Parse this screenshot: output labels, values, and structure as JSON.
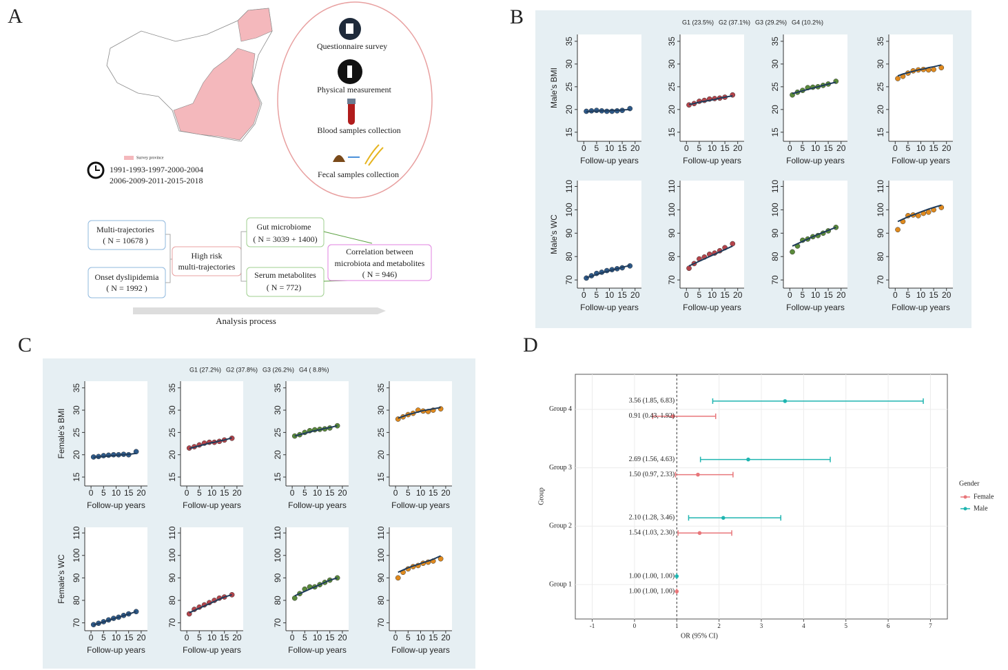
{
  "labels": [
    "A",
    "B",
    "C",
    "D"
  ],
  "diagram": {
    "map_legend": "Survey province",
    "years": [
      "1991-1993-1997-2000-2004",
      "2006-2009-2011-2015-2018"
    ],
    "steps": [
      "Questionnaire survey",
      "Physical measurement",
      "Blood samples collection",
      "Fecal samples collection"
    ],
    "flow": [
      [
        "Multi-trajectories",
        "( N = 10678 )"
      ],
      [
        "Onset dyslipidemia",
        "( N = 1992 )"
      ],
      [
        "High risk",
        "multi-trajectories"
      ],
      [
        "Gut microbiome",
        "( N = 3039 + 1400)"
      ],
      [
        "Serum metabolites",
        "( N = 772)"
      ],
      [
        "Correlation between",
        "microbiota and metabolites",
        "( N = 946)"
      ]
    ],
    "process": "Analysis process"
  },
  "groups_male": [
    "G1 (23.5%)",
    "G2 (37.1%)",
    "G3 (29.2%)",
    "G4 (10.2%)"
  ],
  "groups_female": [
    "G1 (27.2%)",
    "G2 (37.8%)",
    "G3 (26.2%)",
    "G4 ( 8.8%)"
  ],
  "chart_data": [
    {
      "type": "scatter",
      "ylabel": "Male's BMI",
      "xlabel": "Follow-up years",
      "x": [
        1,
        3,
        5,
        7,
        9,
        11,
        13,
        15,
        18
      ],
      "xlim": [
        -2.5,
        22.5
      ],
      "xticks": [
        0,
        5,
        10,
        15,
        20
      ],
      "ylim": [
        13,
        36.5
      ],
      "yticks": [
        15,
        20,
        25,
        30,
        35
      ],
      "series": [
        {
          "color": "#2e5a8a",
          "values": [
            19.6,
            19.7,
            19.8,
            19.7,
            19.6,
            19.6,
            19.7,
            19.8,
            20.2
          ]
        },
        {
          "color": "#1f3b5a",
          "line": true,
          "values": [
            19.5,
            19.6,
            19.6,
            19.7,
            19.7,
            19.8,
            19.8,
            19.9,
            20.0
          ]
        }
      ]
    },
    {
      "type": "scatter",
      "xlabel": "Follow-up years",
      "x": [
        1,
        3,
        5,
        7,
        9,
        11,
        13,
        15,
        18
      ],
      "xlim": [
        -2.5,
        22.5
      ],
      "xticks": [
        0,
        5,
        10,
        15,
        20
      ],
      "ylim": [
        13,
        36.5
      ],
      "yticks": [
        15,
        20,
        25,
        30,
        35
      ],
      "series": [
        {
          "color": "#b5444b",
          "values": [
            21.0,
            21.3,
            21.8,
            22.0,
            22.3,
            22.4,
            22.5,
            22.7,
            23.2
          ]
        },
        {
          "color": "#1f3b5a",
          "line": true,
          "values": [
            21.1,
            21.3,
            21.6,
            21.8,
            22.0,
            22.2,
            22.5,
            22.7,
            23.0
          ]
        }
      ]
    },
    {
      "type": "scatter",
      "xlabel": "Follow-up years",
      "x": [
        1,
        3,
        5,
        7,
        9,
        11,
        13,
        15,
        18
      ],
      "xlim": [
        -2.5,
        22.5
      ],
      "xticks": [
        0,
        5,
        10,
        15,
        20
      ],
      "ylim": [
        13,
        36.5
      ],
      "yticks": [
        15,
        20,
        25,
        30,
        35
      ],
      "series": [
        {
          "color": "#5a8a3a",
          "values": [
            23.2,
            23.8,
            24.2,
            24.8,
            24.9,
            25.0,
            25.3,
            25.6,
            26.2
          ]
        },
        {
          "color": "#1f3b5a",
          "line": true,
          "values": [
            23.5,
            23.8,
            24.1,
            24.4,
            24.7,
            25.0,
            25.3,
            25.6,
            26.0
          ]
        }
      ]
    },
    {
      "type": "scatter",
      "xlabel": "Follow-up years",
      "x": [
        1,
        3,
        5,
        7,
        9,
        11,
        13,
        15,
        18
      ],
      "xlim": [
        -2.5,
        22.5
      ],
      "xticks": [
        0,
        5,
        10,
        15,
        20
      ],
      "ylim": [
        13,
        36.5
      ],
      "yticks": [
        15,
        20,
        25,
        30,
        35
      ],
      "series": [
        {
          "color": "#e08a1e",
          "values": [
            26.8,
            27.3,
            28.0,
            28.5,
            28.7,
            28.8,
            28.7,
            28.8,
            29.2
          ]
        },
        {
          "color": "#1f3b5a",
          "line": true,
          "values": [
            27.4,
            27.8,
            28.1,
            28.4,
            28.7,
            28.9,
            29.2,
            29.4,
            29.8
          ]
        }
      ]
    },
    {
      "type": "scatter",
      "ylabel": "Male's WC",
      "xlabel": "Follow-up years",
      "x": [
        1,
        3,
        5,
        7,
        9,
        11,
        13,
        15,
        18
      ],
      "xlim": [
        -2.5,
        22.5
      ],
      "xticks": [
        0,
        5,
        10,
        15,
        20
      ],
      "ylim": [
        66.5,
        112.5
      ],
      "yticks": [
        70,
        80,
        90,
        100,
        110
      ],
      "series": [
        {
          "color": "#2e5a8a",
          "values": [
            70.8,
            71.8,
            72.8,
            73.3,
            74.0,
            74.4,
            74.8,
            75.2,
            76.0
          ]
        },
        {
          "color": "#1f3b5a",
          "line": true,
          "values": [
            71.0,
            71.6,
            72.3,
            73.0,
            73.6,
            74.2,
            74.8,
            75.4,
            76.2
          ]
        }
      ]
    },
    {
      "type": "scatter",
      "xlabel": "Follow-up years",
      "x": [
        1,
        3,
        5,
        7,
        9,
        11,
        13,
        15,
        18
      ],
      "xlim": [
        -2.5,
        22.5
      ],
      "xticks": [
        0,
        5,
        10,
        15,
        20
      ],
      "ylim": [
        66.5,
        112.5
      ],
      "yticks": [
        70,
        80,
        90,
        100,
        110
      ],
      "series": [
        {
          "color": "#b5444b",
          "values": [
            75.0,
            77.0,
            79.0,
            79.8,
            81.0,
            81.5,
            82.5,
            83.8,
            85.5
          ]
        },
        {
          "color": "#1f3b5a",
          "line": true,
          "values": [
            76.0,
            77.0,
            78.0,
            79.0,
            80.0,
            81.0,
            82.0,
            83.0,
            84.5
          ]
        }
      ]
    },
    {
      "type": "scatter",
      "xlabel": "Follow-up years",
      "x": [
        1,
        3,
        5,
        7,
        9,
        11,
        13,
        15,
        18
      ],
      "xlim": [
        -2.5,
        22.5
      ],
      "xticks": [
        0,
        5,
        10,
        15,
        20
      ],
      "ylim": [
        66.5,
        112.5
      ],
      "yticks": [
        70,
        80,
        90,
        100,
        110
      ],
      "series": [
        {
          "color": "#5a8a3a",
          "values": [
            82.0,
            84.5,
            87.0,
            87.5,
            88.5,
            89.0,
            90.0,
            91.0,
            92.5
          ]
        },
        {
          "color": "#1f3b5a",
          "line": true,
          "values": [
            84.5,
            85.5,
            86.5,
            87.5,
            88.5,
            89.5,
            90.3,
            91.2,
            92.5
          ]
        }
      ]
    },
    {
      "type": "scatter",
      "xlabel": "Follow-up years",
      "x": [
        1,
        3,
        5,
        7,
        9,
        11,
        13,
        15,
        18
      ],
      "xlim": [
        -2.5,
        22.5
      ],
      "xticks": [
        0,
        5,
        10,
        15,
        20
      ],
      "ylim": [
        66.5,
        112.5
      ],
      "yticks": [
        70,
        80,
        90,
        100,
        110
      ],
      "series": [
        {
          "color": "#e08a1e",
          "values": [
            91.5,
            95.0,
            97.5,
            97.8,
            97.5,
            98.5,
            99.0,
            100.0,
            101.0
          ]
        },
        {
          "color": "#1f3b5a",
          "line": true,
          "values": [
            95.0,
            96.0,
            97.0,
            97.8,
            98.7,
            99.5,
            100.3,
            101.0,
            102.0
          ]
        }
      ]
    },
    {
      "type": "scatter",
      "ylabel": "Female's BMI",
      "xlabel": "Follow-up years",
      "x": [
        1,
        3,
        5,
        7,
        9,
        11,
        13,
        15,
        18
      ],
      "xlim": [
        -2.5,
        22.5
      ],
      "xticks": [
        0,
        5,
        10,
        15,
        20
      ],
      "ylim": [
        13,
        36.5
      ],
      "yticks": [
        15,
        20,
        25,
        30,
        35
      ],
      "series": [
        {
          "color": "#2e5a8a",
          "values": [
            19.5,
            19.6,
            19.8,
            19.9,
            20.0,
            20.0,
            20.1,
            20.0,
            20.7
          ]
        },
        {
          "color": "#1f3b5a",
          "line": true,
          "values": [
            19.4,
            19.5,
            19.6,
            19.7,
            19.8,
            19.9,
            20.0,
            20.1,
            20.3
          ]
        }
      ]
    },
    {
      "type": "scatter",
      "xlabel": "Follow-up years",
      "x": [
        1,
        3,
        5,
        7,
        9,
        11,
        13,
        15,
        18
      ],
      "xlim": [
        -2.5,
        22.5
      ],
      "xticks": [
        0,
        5,
        10,
        15,
        20
      ],
      "ylim": [
        13,
        36.5
      ],
      "yticks": [
        15,
        20,
        25,
        30,
        35
      ],
      "series": [
        {
          "color": "#b5444b",
          "values": [
            21.5,
            21.8,
            22.2,
            22.6,
            22.8,
            22.8,
            23.0,
            23.3,
            23.7
          ]
        },
        {
          "color": "#1f3b5a",
          "line": true,
          "values": [
            21.4,
            21.7,
            22.0,
            22.3,
            22.6,
            22.8,
            23.1,
            23.3,
            23.8
          ]
        }
      ]
    },
    {
      "type": "scatter",
      "xlabel": "Follow-up years",
      "x": [
        1,
        3,
        5,
        7,
        9,
        11,
        13,
        15,
        18
      ],
      "xlim": [
        -2.5,
        22.5
      ],
      "xticks": [
        0,
        5,
        10,
        15,
        20
      ],
      "ylim": [
        13,
        36.5
      ],
      "yticks": [
        15,
        20,
        25,
        30,
        35
      ],
      "series": [
        {
          "color": "#5a8a3a",
          "values": [
            24.2,
            24.5,
            25.0,
            25.4,
            25.6,
            25.7,
            25.8,
            26.0,
            26.5
          ]
        },
        {
          "color": "#1f3b5a",
          "line": true,
          "values": [
            24.2,
            24.5,
            24.8,
            25.1,
            25.4,
            25.6,
            25.9,
            26.1,
            26.5
          ]
        }
      ]
    },
    {
      "type": "scatter",
      "xlabel": "Follow-up years",
      "x": [
        1,
        3,
        5,
        7,
        9,
        11,
        13,
        15,
        18
      ],
      "xlim": [
        -2.5,
        22.5
      ],
      "xticks": [
        0,
        5,
        10,
        15,
        20
      ],
      "ylim": [
        13,
        36.5
      ],
      "yticks": [
        15,
        20,
        25,
        30,
        35
      ],
      "series": [
        {
          "color": "#e08a1e",
          "values": [
            28.0,
            28.5,
            29.0,
            29.3,
            30.0,
            29.8,
            29.7,
            30.0,
            30.3
          ]
        },
        {
          "color": "#1f3b5a",
          "line": true,
          "values": [
            28.2,
            28.6,
            29.0,
            29.3,
            29.6,
            29.9,
            30.1,
            30.3,
            30.6
          ]
        }
      ]
    },
    {
      "type": "scatter",
      "ylabel": "Female's WC",
      "xlabel": "Follow-up years",
      "x": [
        1,
        3,
        5,
        7,
        9,
        11,
        13,
        15,
        18
      ],
      "xlim": [
        -2.5,
        22.5
      ],
      "xticks": [
        0,
        5,
        10,
        15,
        20
      ],
      "ylim": [
        66.5,
        112.5
      ],
      "yticks": [
        70,
        80,
        90,
        100,
        110
      ],
      "series": [
        {
          "color": "#2e5a8a",
          "values": [
            69.2,
            69.8,
            70.5,
            71.3,
            72.0,
            72.5,
            73.3,
            74.0,
            75.0
          ]
        },
        {
          "color": "#1f3b5a",
          "line": true,
          "values": [
            69.0,
            69.7,
            70.4,
            71.1,
            71.8,
            72.5,
            73.2,
            73.9,
            75.0
          ]
        }
      ]
    },
    {
      "type": "scatter",
      "xlabel": "Follow-up years",
      "x": [
        1,
        3,
        5,
        7,
        9,
        11,
        13,
        15,
        18
      ],
      "xlim": [
        -2.5,
        22.5
      ],
      "xticks": [
        0,
        5,
        10,
        15,
        20
      ],
      "ylim": [
        66.5,
        112.5
      ],
      "yticks": [
        70,
        80,
        90,
        100,
        110
      ],
      "series": [
        {
          "color": "#b5444b",
          "values": [
            74.0,
            76.0,
            77.0,
            78.0,
            79.0,
            80.0,
            81.0,
            81.5,
            82.5
          ]
        },
        {
          "color": "#1f3b5a",
          "line": true,
          "values": [
            74.5,
            75.5,
            76.5,
            77.5,
            78.5,
            79.5,
            80.5,
            81.5,
            82.5
          ]
        }
      ]
    },
    {
      "type": "scatter",
      "xlabel": "Follow-up years",
      "x": [
        1,
        3,
        5,
        7,
        9,
        11,
        13,
        15,
        18
      ],
      "xlim": [
        -2.5,
        22.5
      ],
      "xticks": [
        0,
        5,
        10,
        15,
        20
      ],
      "ylim": [
        66.5,
        112.5
      ],
      "yticks": [
        70,
        80,
        90,
        100,
        110
      ],
      "series": [
        {
          "color": "#5a8a3a",
          "values": [
            81.0,
            83.0,
            85.0,
            86.0,
            86.0,
            87.0,
            88.0,
            89.0,
            90.0
          ]
        },
        {
          "color": "#1f3b5a",
          "line": true,
          "values": [
            82.0,
            83.0,
            84.0,
            85.0,
            86.0,
            87.0,
            88.0,
            89.0,
            90.0
          ]
        }
      ]
    },
    {
      "type": "scatter",
      "xlabel": "Follow-up years",
      "x": [
        1,
        3,
        5,
        7,
        9,
        11,
        13,
        15,
        18
      ],
      "xlim": [
        -2.5,
        22.5
      ],
      "xticks": [
        0,
        5,
        10,
        15,
        20
      ],
      "ylim": [
        66.5,
        112.5
      ],
      "yticks": [
        70,
        80,
        90,
        100,
        110
      ],
      "series": [
        {
          "color": "#e08a1e",
          "values": [
            90.0,
            92.5,
            94.0,
            95.0,
            95.5,
            96.5,
            97.0,
            97.5,
            98.5
          ]
        },
        {
          "color": "#1f3b5a",
          "line": true,
          "values": [
            92.5,
            93.5,
            94.5,
            95.3,
            96.0,
            96.8,
            97.5,
            98.3,
            99.8
          ]
        }
      ]
    },
    {
      "type": "forest",
      "xlabel": "OR (95% CI)",
      "ylabel": "Group",
      "legend_title": "Gender",
      "refline": 1,
      "categories": [
        "Group 1",
        "Group 2",
        "Group 3",
        "Group 4"
      ],
      "xlim": [
        -1.4,
        7.4
      ],
      "xticks": [
        -1,
        0,
        1,
        2,
        3,
        4,
        5,
        6,
        7
      ],
      "series": [
        {
          "name": "Female",
          "color": "#e8767a",
          "values": [
            1.0,
            1.54,
            1.5,
            0.91
          ],
          "lower": [
            1.0,
            1.03,
            0.97,
            0.43
          ],
          "upper": [
            1.0,
            2.3,
            2.33,
            1.92
          ],
          "value_labels": [
            "1.00 (1.00, 1.00)",
            "1.54 (1.03, 2.30)",
            "1.50 (0.97, 2.33)",
            "0.91 (0.43, 1.92)"
          ]
        },
        {
          "name": "Male",
          "color": "#1fb5b0",
          "values": [
            1.0,
            2.1,
            2.69,
            3.56
          ],
          "lower": [
            1.0,
            1.28,
            1.56,
            1.85
          ],
          "upper": [
            1.0,
            3.46,
            4.63,
            6.83
          ],
          "value_labels": [
            "1.00 (1.00, 1.00)",
            "2.10 (1.28, 3.46)",
            "2.69 (1.56, 4.63)",
            "3.56 (1.85, 6.83)"
          ]
        }
      ]
    }
  ]
}
